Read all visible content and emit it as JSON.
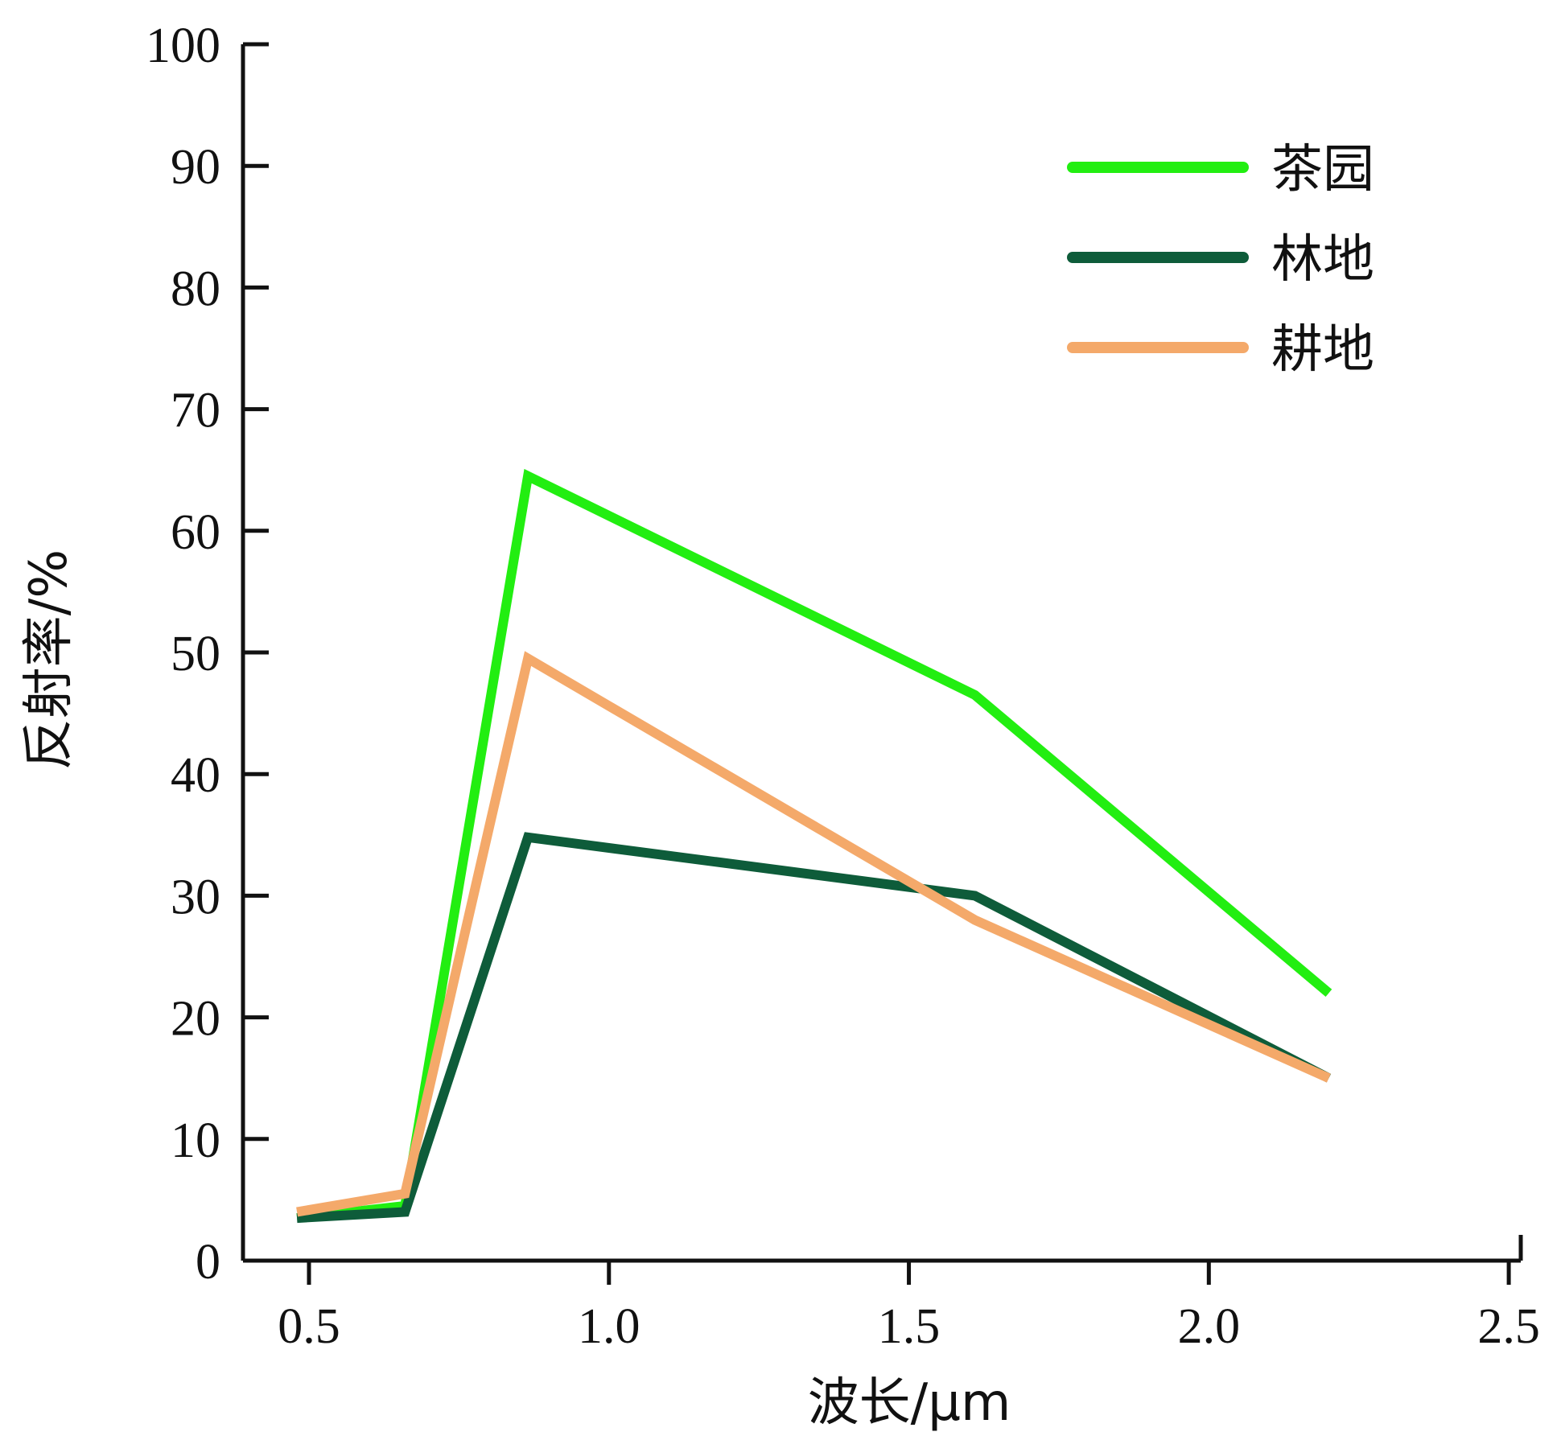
{
  "chart_data": {
    "type": "line",
    "title": "",
    "xlabel": "波长/μm",
    "ylabel": "反射率/%",
    "xlim": [
      0.39,
      2.52
    ],
    "ylim": [
      0,
      100
    ],
    "x_ticks": [
      0.5,
      1.0,
      1.5,
      2.0,
      2.5
    ],
    "x_tick_labels": [
      "0.5",
      "1.0",
      "1.5",
      "2.0",
      "2.5"
    ],
    "y_ticks": [
      0,
      10,
      20,
      30,
      40,
      50,
      60,
      70,
      80,
      90,
      100
    ],
    "y_tick_labels": [
      "0",
      "10",
      "20",
      "30",
      "40",
      "50",
      "60",
      "70",
      "80",
      "90",
      "100"
    ],
    "grid": false,
    "legend_position": "top-right",
    "series": [
      {
        "name": "茶园",
        "color": "#22ee11",
        "x": [
          0.48,
          0.66,
          0.865,
          1.61,
          2.2
        ],
        "y": [
          3.5,
          4.5,
          64.5,
          46.5,
          22
        ]
      },
      {
        "name": "林地",
        "color": "#0e5c3a",
        "x": [
          0.48,
          0.66,
          0.865,
          1.61,
          2.2
        ],
        "y": [
          3.5,
          4,
          34.8,
          30,
          15
        ]
      },
      {
        "name": "耕地",
        "color": "#f4a96a",
        "x": [
          0.48,
          0.66,
          0.865,
          1.61,
          2.2
        ],
        "y": [
          4,
          5.5,
          49.5,
          28,
          15
        ]
      }
    ]
  }
}
